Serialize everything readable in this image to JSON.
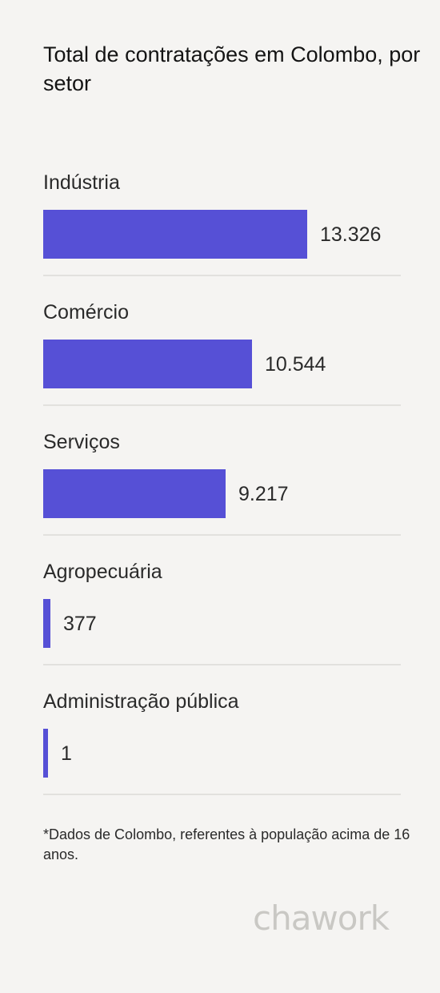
{
  "title": "Total de contratações em Colombo, por setor",
  "chart_data": {
    "type": "bar",
    "orientation": "horizontal",
    "categories": [
      "Indústria",
      "Comércio",
      "Serviços",
      "Agropecuária",
      "Administração pública"
    ],
    "values": [
      13326,
      10544,
      9217,
      377,
      1
    ],
    "value_labels": [
      "13.326",
      "10.544",
      "9.217",
      "377",
      "1"
    ],
    "bar_color": "#5650d6",
    "title": "Total de contratações em Colombo, por setor"
  },
  "footnote": "*Dados de Colombo, referentes à população acima de 16 anos.",
  "brand": "chawork"
}
